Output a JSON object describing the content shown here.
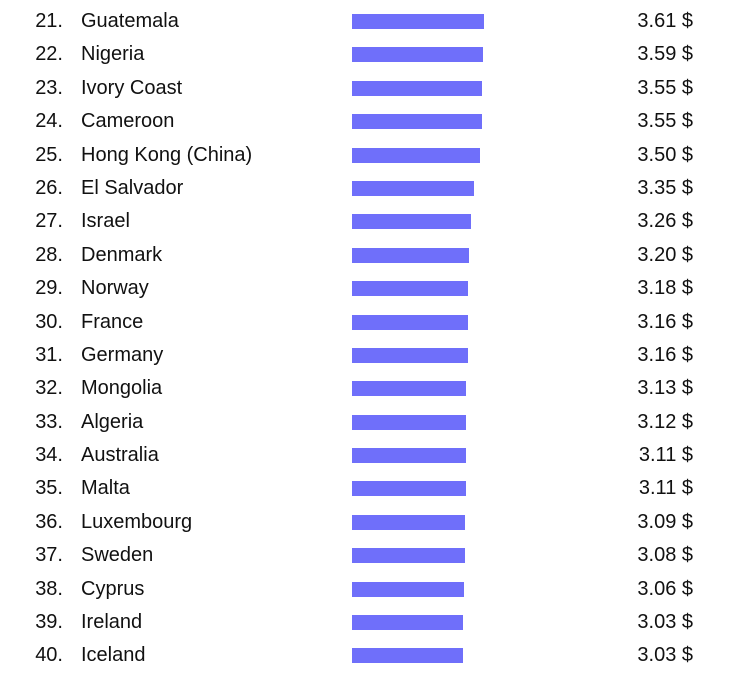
{
  "chart_data": {
    "type": "bar",
    "orientation": "horizontal",
    "bar_color": "#6f6ffa",
    "currency": "$",
    "xlim": [
      0,
      3.61
    ],
    "rows": [
      {
        "rank": "21.",
        "country": "Guatemala",
        "value": 3.61,
        "label": "3.61 $"
      },
      {
        "rank": "22.",
        "country": "Nigeria",
        "value": 3.59,
        "label": "3.59 $"
      },
      {
        "rank": "23.",
        "country": "Ivory Coast",
        "value": 3.55,
        "label": "3.55 $"
      },
      {
        "rank": "24.",
        "country": "Cameroon",
        "value": 3.55,
        "label": "3.55 $"
      },
      {
        "rank": "25.",
        "country": "Hong Kong (China)",
        "value": 3.5,
        "label": "3.50 $"
      },
      {
        "rank": "26.",
        "country": "El Salvador",
        "value": 3.35,
        "label": "3.35 $"
      },
      {
        "rank": "27.",
        "country": "Israel",
        "value": 3.26,
        "label": "3.26 $"
      },
      {
        "rank": "28.",
        "country": "Denmark",
        "value": 3.2,
        "label": "3.20 $"
      },
      {
        "rank": "29.",
        "country": "Norway",
        "value": 3.18,
        "label": "3.18 $"
      },
      {
        "rank": "30.",
        "country": "France",
        "value": 3.16,
        "label": "3.16 $"
      },
      {
        "rank": "31.",
        "country": "Germany",
        "value": 3.16,
        "label": "3.16 $"
      },
      {
        "rank": "32.",
        "country": "Mongolia",
        "value": 3.13,
        "label": "3.13 $"
      },
      {
        "rank": "33.",
        "country": "Algeria",
        "value": 3.12,
        "label": "3.12 $"
      },
      {
        "rank": "34.",
        "country": "Australia",
        "value": 3.11,
        "label": "3.11 $"
      },
      {
        "rank": "35.",
        "country": "Malta",
        "value": 3.11,
        "label": "3.11 $"
      },
      {
        "rank": "36.",
        "country": "Luxembourg",
        "value": 3.09,
        "label": "3.09 $"
      },
      {
        "rank": "37.",
        "country": "Sweden",
        "value": 3.08,
        "label": "3.08 $"
      },
      {
        "rank": "38.",
        "country": "Cyprus",
        "value": 3.06,
        "label": "3.06 $"
      },
      {
        "rank": "39.",
        "country": "Ireland",
        "value": 3.03,
        "label": "3.03 $"
      },
      {
        "rank": "40.",
        "country": "Iceland",
        "value": 3.03,
        "label": "3.03 $"
      }
    ]
  }
}
